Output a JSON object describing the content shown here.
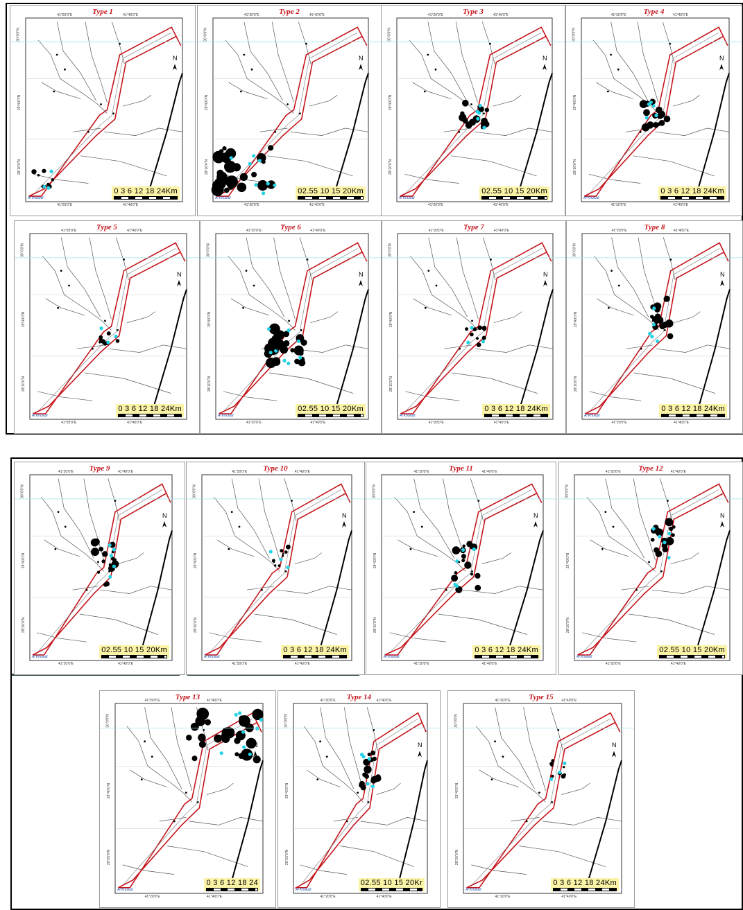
{
  "panels": [
    {
      "title": "Type 1",
      "scale": "0 3 6   12  18  24",
      "unit": "Km",
      "shape": "poly",
      "zone": "sw"
    },
    {
      "title": "Type 2",
      "scale": "02.55   10  15  20",
      "unit": "Km",
      "shape": "poly",
      "zone": "sw-big"
    },
    {
      "title": "Type 3",
      "scale": "02.55   10  15  20",
      "unit": "Km",
      "shape": "poly",
      "zone": "center"
    },
    {
      "title": "Type 4",
      "scale": "0 3 6   12  18  24",
      "unit": "Km",
      "shape": "poly",
      "zone": "center"
    },
    {
      "title": "Type 5",
      "scale": "0 3 6   12  18  24",
      "unit": "Km",
      "shape": "poly",
      "zone": "center-small"
    },
    {
      "title": "Type 6",
      "scale": "02.55   10  15  20",
      "unit": "Km",
      "shape": "poly",
      "zone": "center-big"
    },
    {
      "title": "Type 7",
      "scale": "0 3 6   12  18  24",
      "unit": "Km",
      "shape": "poly",
      "zone": "center-small"
    },
    {
      "title": "Type 8",
      "scale": "0 3 6   12  18  24",
      "unit": "Km",
      "shape": "poly",
      "zone": "mid"
    },
    {
      "title": "Type 9",
      "scale": "02.55   10  15  20",
      "unit": "Km",
      "shape": "poly",
      "zone": "mid"
    },
    {
      "title": "Type 10",
      "scale": "0 3 6   12  18  24",
      "unit": "Km",
      "shape": "poly",
      "zone": "mid-small"
    },
    {
      "title": "Type 11",
      "scale": "0 3 6   12  18  24",
      "unit": "Km",
      "shape": "poly",
      "zone": "mid"
    },
    {
      "title": "Type 12",
      "scale": "02.55   10  15  20",
      "unit": "Km",
      "shape": "poly",
      "zone": "upper"
    },
    {
      "title": "Type 13",
      "scale": "0 3 6   12  18  24",
      "unit": "",
      "shape": "poly",
      "zone": "ne"
    },
    {
      "title": "Type 14",
      "scale": "02.55   10  15  20",
      "unit": "Kr",
      "shape": "poly",
      "zone": "upper"
    },
    {
      "title": "Type 15",
      "scale": "0 3 6   12  18  24",
      "unit": "Km",
      "shape": "poly",
      "zone": "upper-small"
    }
  ],
  "labels": {
    "lon_left": "41°20'0\"E",
    "lon_right": "41°40'0\"E",
    "lat_top": "30°0'0\"N",
    "lat_mid": "29°40'0\"N",
    "lat_low": "29°20'0\"N",
    "place_sw": "Al Khuludi",
    "north": "N"
  },
  "colors": {
    "boundary": "#c4161c",
    "fill": "#000000",
    "points": "#22d3e6",
    "title": "#c4161c",
    "scale_bg": "#fbf3a6"
  }
}
